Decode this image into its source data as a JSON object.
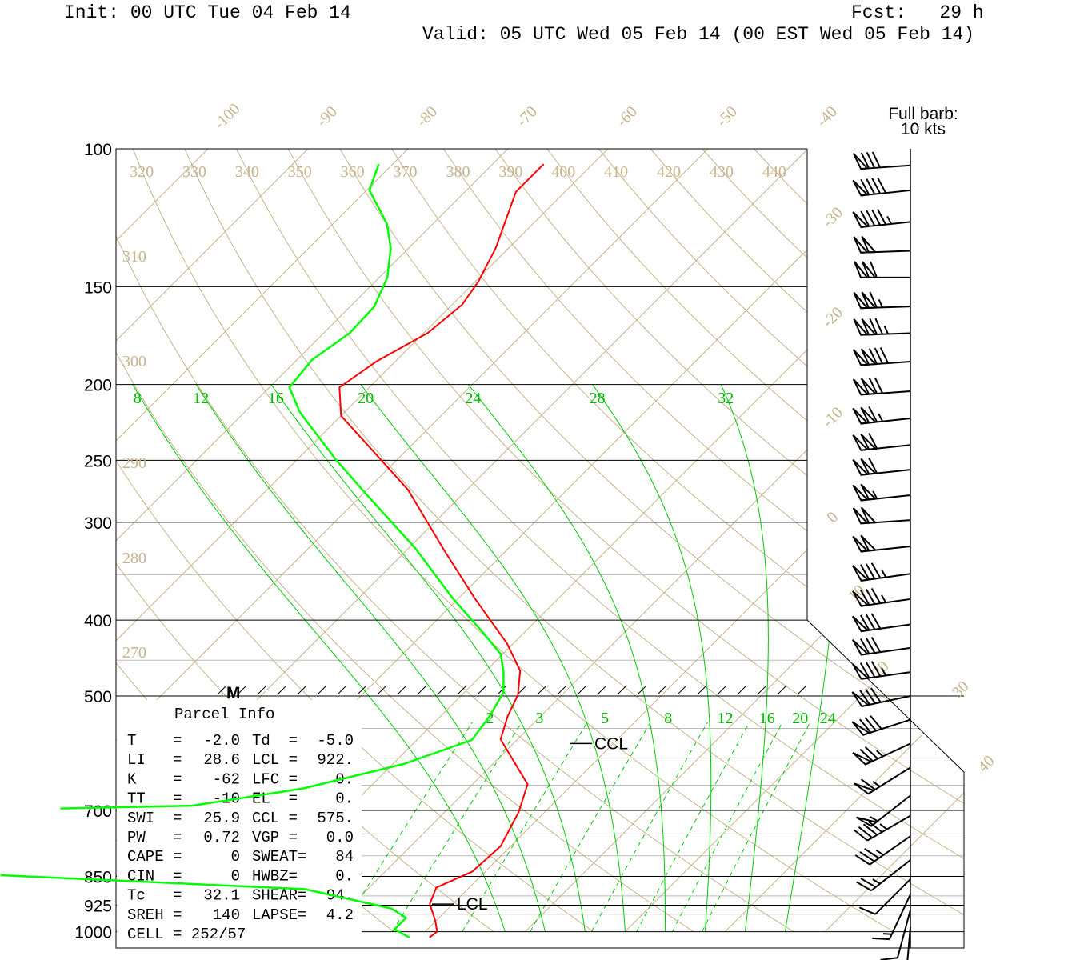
{
  "header": {
    "init": "Init: 00 UTC Tue 04 Feb 14",
    "fcst": "Fcst:   29 h",
    "valid": "Valid: 05 UTC Wed 05 Feb 14 (00 EST Wed 05 Feb 14)"
  },
  "barb_legend": {
    "line1": "Full barb:",
    "line2": "10 kts"
  },
  "parcel_info": {
    "title": "Parcel Info",
    "rows": [
      [
        "T    =",
        "-2.0",
        "Td  =",
        "-5.0"
      ],
      [
        "LI   =",
        "28.6",
        "LCL =",
        "922."
      ],
      [
        "K    =",
        "-62",
        "LFC =",
        "0."
      ],
      [
        "TT   =",
        "-10",
        "EL  =",
        "0."
      ],
      [
        "SWI  =",
        "25.9",
        "CCL =",
        "575."
      ],
      [
        "PW   =",
        "0.72",
        "VGP =",
        "0.0"
      ],
      [
        "CAPE =",
        "0",
        "SWEAT=",
        "84"
      ],
      [
        "CIN  =",
        "0",
        "HWBZ=",
        "0."
      ],
      [
        "Tc   =",
        "32.1",
        "SHEAR=",
        "94."
      ],
      [
        "SREH =",
        "140",
        "LAPSE=",
        "4.2"
      ],
      [
        "CELL = 252/57",
        "",
        "",
        ""
      ]
    ]
  },
  "colors": {
    "temperature": "#ff0000",
    "dewpoint": "#00ff00",
    "isotherm": "#c8b48c",
    "dry_adiabat": "#c8b48c",
    "moist_adiabat": "#00cc00",
    "mixing_ratio": "#00cc00"
  },
  "chart_data": {
    "type": "skew-t",
    "title": "",
    "pressure_levels": [
      "100",
      "150",
      "200",
      "250",
      "300",
      "400",
      "500",
      "700",
      "850",
      "925",
      "1000"
    ],
    "ylim_hpa": [
      100,
      1000
    ],
    "isotherm_labels": [
      "-100",
      "-90",
      "-80",
      "-70",
      "-60",
      "-50",
      "-40",
      "-30",
      "-20",
      "-10",
      "0",
      "10",
      "20",
      "30",
      "40"
    ],
    "dry_adiabat_labels": [
      "270",
      "280",
      "290",
      "300",
      "310",
      "320",
      "330",
      "340",
      "350",
      "360",
      "370",
      "380",
      "390",
      "400",
      "410",
      "420",
      "430",
      "440"
    ],
    "moist_adiabat_labels": [
      "8",
      "12",
      "16",
      "20",
      "24",
      "28",
      "32"
    ],
    "mixing_ratio_labels": [
      "2",
      "3",
      "5",
      "8",
      "12",
      "16",
      "20",
      "24"
    ],
    "annotations": {
      "max_wind": "M",
      "ccl": "CCL",
      "lcl": "LCL",
      "ccl_p": 575,
      "lcl_p": 922
    },
    "temperature": [
      [
        104.6,
        -64.9
      ],
      [
        113.5,
        -64.9
      ],
      [
        133.9,
        -61.3
      ],
      [
        147.7,
        -59.7
      ],
      [
        158.2,
        -59.0
      ],
      [
        171.8,
        -59.6
      ],
      [
        186.9,
        -61.9
      ],
      [
        201.7,
        -63.0
      ],
      [
        219.3,
        -60.0
      ],
      [
        245.8,
        -52.6
      ],
      [
        272.6,
        -45.9
      ],
      [
        325.9,
        -36.2
      ],
      [
        375.0,
        -28.4
      ],
      [
        428.7,
        -20.6
      ],
      [
        464.0,
        -16.6
      ],
      [
        498.3,
        -14.4
      ],
      [
        530.4,
        -13.3
      ],
      [
        567.8,
        -11.7
      ],
      [
        648.1,
        -4.5
      ],
      [
        703.6,
        -2.6
      ],
      [
        777.6,
        -1.0
      ],
      [
        838.2,
        -1.3
      ],
      [
        878.1,
        -3.3
      ],
      [
        921.9,
        -2.3
      ],
      [
        967.8,
        -0.1
      ],
      [
        1000,
        1.2
      ],
      [
        1017,
        1.0
      ]
    ],
    "dewpoint": [
      [
        104.6,
        -81.4
      ],
      [
        113.0,
        -79.7
      ],
      [
        124.7,
        -74.6
      ],
      [
        133.9,
        -71.8
      ],
      [
        146.0,
        -69.2
      ],
      [
        159.0,
        -67.6
      ],
      [
        171.8,
        -67.4
      ],
      [
        186.1,
        -68.5
      ],
      [
        201.7,
        -68.0
      ],
      [
        216.9,
        -64.5
      ],
      [
        249.6,
        -56.1
      ],
      [
        277.6,
        -49.3
      ],
      [
        323.9,
        -39.3
      ],
      [
        375.0,
        -30.6
      ],
      [
        414.4,
        -24.2
      ],
      [
        442.0,
        -20.2
      ],
      [
        466.2,
        -18.1
      ],
      [
        494.7,
        -16.1
      ],
      [
        530.4,
        -15.1
      ],
      [
        569.1,
        -14.5
      ],
      [
        610.5,
        -18.9
      ],
      [
        656.1,
        -26.5
      ],
      [
        690.3,
        -35.9
      ],
      [
        696.0,
        -48.8
      ],
      null,
      [
        847.0,
        -48.1
      ],
      [
        882.4,
        -16.3
      ],
      [
        934.0,
        -5.7
      ],
      [
        960.0,
        -3.3
      ],
      [
        993.2,
        -3.3
      ],
      [
        1017,
        -1.0
      ]
    ],
    "winds_kt": [
      {
        "p": 105,
        "spd": 80,
        "dir": 266
      },
      {
        "p": 113,
        "spd": 90,
        "dir": 264
      },
      {
        "p": 124,
        "spd": 95,
        "dir": 264
      },
      {
        "p": 135,
        "spd": 100,
        "dir": 268
      },
      {
        "p": 146,
        "spd": 110,
        "dir": 270
      },
      {
        "p": 159,
        "spd": 115,
        "dir": 268
      },
      {
        "p": 172,
        "spd": 125,
        "dir": 268
      },
      {
        "p": 187,
        "spd": 130,
        "dir": 266
      },
      {
        "p": 204,
        "spd": 120,
        "dir": 266
      },
      {
        "p": 221,
        "spd": 115,
        "dir": 264
      },
      {
        "p": 239,
        "spd": 110,
        "dir": 264
      },
      {
        "p": 257,
        "spd": 110,
        "dir": 264
      },
      {
        "p": 277,
        "spd": 105,
        "dir": 264
      },
      {
        "p": 298,
        "spd": 100,
        "dir": 266
      },
      {
        "p": 322,
        "spd": 100,
        "dir": 264
      },
      {
        "p": 349,
        "spd": 85,
        "dir": 262
      },
      {
        "p": 376,
        "spd": 85,
        "dir": 262
      },
      {
        "p": 405,
        "spd": 80,
        "dir": 262
      },
      {
        "p": 434,
        "spd": 80,
        "dir": 262
      },
      {
        "p": 466,
        "spd": 85,
        "dir": 262
      },
      {
        "p": 500,
        "spd": 80,
        "dir": 258
      },
      {
        "p": 536,
        "spd": 80,
        "dir": 252
      },
      {
        "p": 575,
        "spd": 75,
        "dir": 245
      },
      {
        "p": 617,
        "spd": 65,
        "dir": 238
      },
      {
        "p": 670,
        "spd": 55,
        "dir": 232
      },
      {
        "p": 711,
        "spd": 45,
        "dir": 240
      },
      {
        "p": 755,
        "spd": 35,
        "dir": 235
      },
      {
        "p": 810,
        "spd": 25,
        "dir": 232
      },
      {
        "p": 857,
        "spd": 10,
        "dir": 225
      },
      {
        "p": 896,
        "spd": 15,
        "dir": 205
      },
      {
        "p": 938,
        "spd": 10,
        "dir": 195
      },
      {
        "p": 987,
        "spd": 5,
        "dir": 185
      }
    ]
  }
}
